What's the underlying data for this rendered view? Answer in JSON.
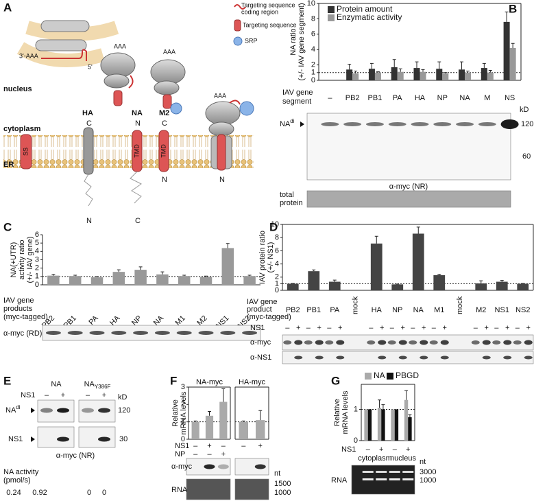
{
  "panel_labels": [
    "A",
    "B",
    "C",
    "D",
    "E",
    "F",
    "G"
  ],
  "diagram": {
    "legend_coding": [
      "Targeting sequence",
      "coding region"
    ],
    "legend_targeting": "Targeting sequence",
    "legend_srp": "SRP",
    "nucleus": "nucleus",
    "cytoplasm": "cytoplasm",
    "er": "ER",
    "mrna_3": "3'-AAA",
    "mrna_5": "5'",
    "polya": "AAA",
    "proteins": [
      "HA",
      "NA",
      "M2"
    ],
    "top_termini": [
      "C",
      "N",
      "C"
    ],
    "domains": [
      "SS",
      "TMD",
      "TMD"
    ],
    "bottom_termini": [
      "N",
      "C",
      "N",
      "N"
    ]
  },
  "chart_data": [
    {
      "type": "bar",
      "y_title": [
        "NA ratio",
        "(+/- IAV gene segment)"
      ],
      "x_title": [
        "IAV gene",
        "segment"
      ],
      "categories": [
        "–",
        "PB2",
        "PB1",
        "PA",
        "HA",
        "NP",
        "NA",
        "M",
        "NS"
      ],
      "series": [
        {
          "name": "Protein amount",
          "color": "#333333",
          "values": [
            null,
            1.4,
            1.5,
            1.7,
            1.6,
            1.5,
            1.4,
            1.6,
            7.6
          ],
          "errors": [
            null,
            0.7,
            0.7,
            1.0,
            0.8,
            0.9,
            1.0,
            0.6,
            1.3
          ]
        },
        {
          "name": "Enzymatic activity",
          "color": "#999999",
          "values": [
            null,
            0.9,
            1.0,
            1.1,
            1.1,
            0.9,
            1.0,
            1.0,
            4.2
          ],
          "errors": [
            null,
            0.3,
            0.1,
            0.4,
            0.3,
            0.1,
            0.2,
            0.3,
            0.6
          ]
        }
      ],
      "ylim": [
        0,
        10
      ],
      "yticks": [
        0,
        1,
        2,
        4,
        6,
        8,
        10
      ],
      "reference_line": 1,
      "legend": "top-left"
    },
    {
      "type": "bar",
      "y_title": [
        "NA(+UTR)",
        "activity ratio",
        "(+/- IAV gene)"
      ],
      "x_title": [
        "IAV gene",
        "products",
        "(myc-tagged)"
      ],
      "categories": [
        "PB2",
        "PB1",
        "PA",
        "HA",
        "NP",
        "NA",
        "M1",
        "M2",
        "NS1",
        "NS2"
      ],
      "color": "#999999",
      "values": [
        1.1,
        1.05,
        0.9,
        1.55,
        1.8,
        1.25,
        1.05,
        0.95,
        4.4,
        1.05
      ],
      "errors": [
        0.15,
        0.1,
        0.1,
        0.25,
        0.35,
        0.3,
        0.1,
        0.1,
        0.55,
        0.1
      ],
      "ylim": [
        0,
        6
      ],
      "yticks": [
        0,
        1,
        2,
        3,
        4,
        5,
        6
      ],
      "reference_line": 1
    },
    {
      "type": "bar",
      "y_title": [
        "IAV protein ratio",
        "(+/- NS1)"
      ],
      "x_title": [
        "IAV gene",
        "product",
        "(myc-tagged)"
      ],
      "categories": [
        "PB2",
        "PB1",
        "PA",
        "mock",
        "HA",
        "NP",
        "NA",
        "M1",
        "mock",
        "M2",
        "NS1",
        "NS2"
      ],
      "color": "#444444",
      "values": [
        1.0,
        2.9,
        1.3,
        null,
        7.1,
        0.9,
        8.6,
        2.3,
        null,
        1.05,
        1.3,
        1.0
      ],
      "errors": [
        0.05,
        0.2,
        0.25,
        null,
        1.1,
        0.05,
        1.0,
        0.15,
        null,
        0.4,
        0.2,
        0.05
      ],
      "ylim": [
        0,
        10
      ],
      "yticks": [
        0,
        1,
        2,
        4,
        6,
        8,
        10
      ],
      "reference_line": 1
    },
    {
      "type": "bar",
      "title": "NA-myc",
      "y_title": [
        "Relative",
        "mRNA levels"
      ],
      "color": "#aaaaaa",
      "values": [
        1,
        1.35,
        2.15
      ],
      "errors": [
        0.05,
        0.25,
        0.75
      ],
      "ylim": [
        0,
        3
      ],
      "yticks": [
        0,
        1,
        2,
        3
      ],
      "reference_line": 1,
      "row_names": [
        "NS1",
        "NP"
      ],
      "rows": [
        [
          "–",
          "+",
          "–"
        ],
        [
          "–",
          "–",
          "+"
        ]
      ]
    },
    {
      "type": "bar",
      "title": "HA-myc",
      "color": "#aaaaaa",
      "values": [
        1,
        1.1
      ],
      "errors": [
        0.05,
        0.55
      ],
      "ylim": [
        0,
        3
      ],
      "reference_line": 1,
      "rows": [
        [
          "–",
          "+"
        ]
      ]
    },
    {
      "type": "bar",
      "y_title": [
        "Relative",
        "mRNA levels"
      ],
      "categories": [
        "–",
        "+",
        "–",
        "+"
      ],
      "row_name": "NS1",
      "groups": [
        "cytoplasm",
        "nucleus"
      ],
      "series": [
        {
          "name": "NA",
          "color": "#aaaaaa",
          "values": [
            1,
            1.05,
            1,
            1.3
          ],
          "errors": [
            null,
            0.25,
            null,
            0.3
          ]
        },
        {
          "name": "PBGD",
          "color": "#111111",
          "values": [
            1,
            1.0,
            1,
            0.75
          ],
          "errors": [
            null,
            0.15,
            null,
            0.08
          ]
        }
      ],
      "ylim": [
        0,
        1.8
      ],
      "yticks": [
        0,
        1
      ],
      "reference_line": 1,
      "legend": "top"
    }
  ],
  "blots": {
    "B": {
      "band": {
        "text": "NA",
        "sup": "di"
      },
      "kd": "kD",
      "markers": [
        120,
        60
      ],
      "antibody": "α-myc (NR)",
      "loading": [
        "total",
        "protein"
      ]
    },
    "C": {
      "antibody": "α-myc (RD)"
    },
    "D": {
      "row_name": "NS1",
      "signs": [
        "–",
        "+"
      ],
      "antibodies": [
        "α-myc",
        "α-NS1"
      ]
    },
    "E": {
      "constructs": [
        {
          "text": "NA"
        },
        {
          "text": "NA",
          "sub": "Y386F"
        }
      ],
      "row_name": "NS1",
      "signs": [
        "–",
        "+"
      ],
      "kd": "kD",
      "bands": [
        {
          "text": "NA",
          "sup": "di"
        },
        {
          "text": "NS1"
        }
      ],
      "markers": [
        120,
        30
      ],
      "antibody": "α-myc (NR)",
      "activity_title": [
        "NA activity",
        "(pmol/s)"
      ],
      "activity": [
        0.24,
        0.92,
        0,
        0
      ]
    },
    "F": {
      "antibody": "α-myc",
      "rna": "RNA",
      "nt": "nt",
      "markers": [
        1500,
        1000
      ]
    },
    "G": {
      "rna": "RNA",
      "nt": "nt",
      "markers": [
        3000,
        1000
      ]
    }
  }
}
